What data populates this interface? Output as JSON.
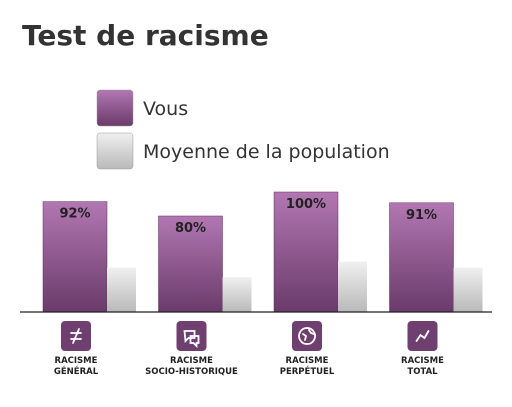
{
  "chart_data": {
    "type": "bar",
    "title": "Test de racisme",
    "categories": [
      "RACISME\nGÉNÉRAL",
      "RACISME\nSOCIO-HISTORIQUE",
      "RACISME\nPERPÉTUEL",
      "RACISME\nTOTAL"
    ],
    "series": [
      {
        "name": "Vous",
        "color": "#8a4f8a",
        "values": [
          92,
          80,
          100,
          91
        ],
        "value_labels": [
          "92%",
          "80%",
          "100%",
          "91%"
        ]
      },
      {
        "name": "Moyenne de la population",
        "color": "#cfcfcf",
        "values": [
          37,
          29,
          42,
          37
        ]
      }
    ],
    "ylim": [
      0,
      100
    ]
  }
}
